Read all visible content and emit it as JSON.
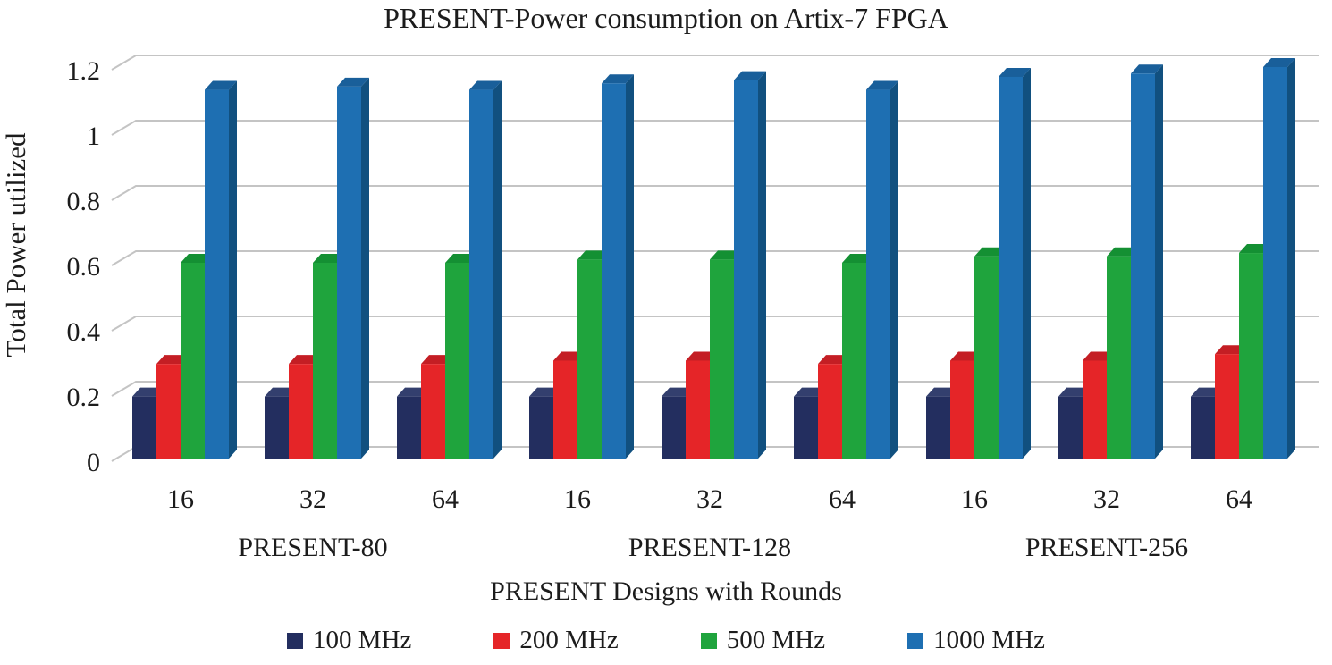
{
  "chart_data": {
    "type": "bar",
    "effect": "3d-clustered-column",
    "title": "PRESENT-Power consumption on Artix-7 FPGA",
    "xlabel": "PRESENT Designs with Rounds",
    "ylabel": "Total Power utilized",
    "ylim": [
      0,
      1.2
    ],
    "grid": true,
    "legend_position": "bottom",
    "background": "#ffffff",
    "gridline_color": "#c4c4c4",
    "yticks": [
      {
        "value": 0,
        "label": "0"
      },
      {
        "value": 0.2,
        "label": "0.2"
      },
      {
        "value": 0.4,
        "label": "0.4"
      },
      {
        "value": 0.6,
        "label": "0.6"
      },
      {
        "value": 0.8,
        "label": "0.8"
      },
      {
        "value": 1,
        "label": "1"
      },
      {
        "value": 1.2,
        "label": "1.2"
      }
    ],
    "groups": [
      {
        "label": "PRESENT-80",
        "categories": [
          "16",
          "32",
          "64"
        ]
      },
      {
        "label": "PRESENT-128",
        "categories": [
          "16",
          "32",
          "64"
        ]
      },
      {
        "label": "PRESENT-256",
        "categories": [
          "16",
          "32",
          "64"
        ]
      }
    ],
    "series": [
      {
        "name": "100 MHz",
        "color": "#232e5f",
        "color_side": "#141c3d",
        "color_top": "#333f6e",
        "values": [
          0.19,
          0.19,
          0.19,
          0.19,
          0.19,
          0.19,
          0.19,
          0.19,
          0.19
        ]
      },
      {
        "name": "200 MHz",
        "color": "#e52528",
        "color_side": "#a8181d",
        "color_top": "#c41e24",
        "values": [
          0.29,
          0.29,
          0.29,
          0.3,
          0.3,
          0.29,
          0.3,
          0.3,
          0.32
        ]
      },
      {
        "name": "500 MHz",
        "color": "#1fa43d",
        "color_side": "#0d7c2b",
        "color_top": "#149033",
        "values": [
          0.6,
          0.6,
          0.6,
          0.61,
          0.61,
          0.6,
          0.62,
          0.62,
          0.63
        ]
      },
      {
        "name": "1000 MHz",
        "color": "#1e6fb2",
        "color_side": "#11507f",
        "color_top": "#195f9a",
        "values": [
          1.13,
          1.14,
          1.13,
          1.15,
          1.16,
          1.13,
          1.17,
          1.18,
          1.2
        ]
      }
    ]
  }
}
